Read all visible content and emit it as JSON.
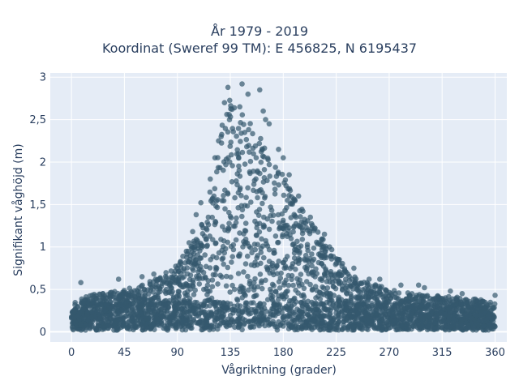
{
  "chart_data": {
    "type": "scatter",
    "title_line1": "År 1979 - 2019",
    "title_line2": "Koordinat (Sweref 99 TM): E 456825, N 6195437",
    "xlabel": "Vågriktning (grader)",
    "ylabel": "Signifikant våghöjd (m)",
    "xlim": [
      -18,
      370
    ],
    "ylim": [
      -0.12,
      3.05
    ],
    "xticks": [
      0,
      45,
      90,
      135,
      180,
      225,
      270,
      315,
      360
    ],
    "xtick_labels": [
      "0",
      "45",
      "90",
      "135",
      "180",
      "225",
      "270",
      "315",
      "360"
    ],
    "yticks": [
      0,
      0.5,
      1,
      1.5,
      2,
      2.5,
      3
    ],
    "ytick_labels": [
      "0",
      "0,5",
      "1",
      "1,5",
      "2",
      "2,5",
      "3"
    ],
    "grid": true,
    "marker_color": "#34586e",
    "plot_bg": "#e5ecf6",
    "envelope": {
      "direction": [
        0,
        20,
        45,
        60,
        75,
        90,
        105,
        115,
        125,
        130,
        135,
        140,
        150,
        160,
        175,
        190,
        210,
        225,
        240,
        260,
        270,
        290,
        315,
        340,
        360
      ],
      "max_height": [
        0.35,
        0.45,
        0.5,
        0.55,
        0.65,
        0.8,
        1.1,
        1.5,
        2.2,
        2.65,
        2.85,
        2.7,
        2.55,
        2.3,
        2.0,
        1.55,
        1.2,
        0.9,
        0.65,
        0.55,
        0.5,
        0.45,
        0.42,
        0.4,
        0.35
      ]
    },
    "outliers": [
      {
        "x": 145,
        "y": 2.92
      },
      {
        "x": 150,
        "y": 2.8
      },
      {
        "x": 160,
        "y": 2.85
      },
      {
        "x": 163,
        "y": 2.6
      },
      {
        "x": 165,
        "y": 2.5
      },
      {
        "x": 168,
        "y": 2.45
      },
      {
        "x": 176,
        "y": 2.15
      },
      {
        "x": 180,
        "y": 2.05
      },
      {
        "x": 185,
        "y": 1.85
      },
      {
        "x": 193,
        "y": 1.6
      },
      {
        "x": 203,
        "y": 1.35
      },
      {
        "x": 215,
        "y": 1.15
      },
      {
        "x": 226,
        "y": 0.85
      },
      {
        "x": 240,
        "y": 0.75
      },
      {
        "x": 253,
        "y": 0.62
      },
      {
        "x": 262,
        "y": 0.62
      },
      {
        "x": 280,
        "y": 0.55
      },
      {
        "x": 295,
        "y": 0.55
      },
      {
        "x": 300,
        "y": 0.52
      },
      {
        "x": 322,
        "y": 0.48
      },
      {
        "x": 332,
        "y": 0.45
      },
      {
        "x": 360,
        "y": 0.43
      },
      {
        "x": 8,
        "y": 0.58
      },
      {
        "x": 40,
        "y": 0.62
      },
      {
        "x": 60,
        "y": 0.65
      },
      {
        "x": 70,
        "y": 0.68
      },
      {
        "x": 100,
        "y": 1.05
      },
      {
        "x": 103,
        "y": 1.18
      },
      {
        "x": 106,
        "y": 1.38
      },
      {
        "x": 110,
        "y": 1.52
      },
      {
        "x": 118,
        "y": 1.8
      },
      {
        "x": 122,
        "y": 2.05
      },
      {
        "x": 125,
        "y": 2.25
      },
      {
        "x": 130,
        "y": 2.7
      },
      {
        "x": 133,
        "y": 2.88
      }
    ]
  }
}
